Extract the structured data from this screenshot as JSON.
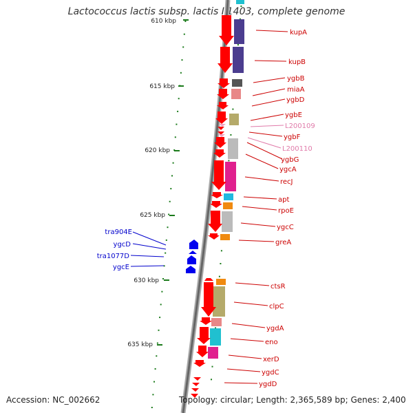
{
  "title": "Lactococcus lactis subsp. lactis Il1403, complete genome",
  "accession": "Accession: NC_002662",
  "summary": "Topology: circular; Length: 2,365,589 bp; Genes: 2,400",
  "colors": {
    "gene_label": "#cc0000",
    "gene_label_pale": "#e07aa9",
    "mobile_label": "#0000cc",
    "scale_tick": "#1a7a1a",
    "backbone": "#777777"
  },
  "scale_labels": [
    "610 kbp",
    "615 kbp",
    "620 kbp",
    "625 kbp",
    "630 kbp",
    "635 kbp"
  ],
  "right_genes": [
    "kupA",
    "kupB",
    "ygbB",
    "miaA",
    "ygbD",
    "ygbE",
    "L200109",
    "ygbF",
    "L200110",
    "ygbG",
    "ygcA",
    "recJ",
    "apt",
    "rpoE",
    "ygcC",
    "greA",
    "ctsR",
    "clpC",
    "ygdA",
    "eno",
    "xerD",
    "ygdC",
    "ygdD"
  ],
  "left_genes": [
    "tra904E",
    "ygcD",
    "tra1077D",
    "ygcE"
  ]
}
